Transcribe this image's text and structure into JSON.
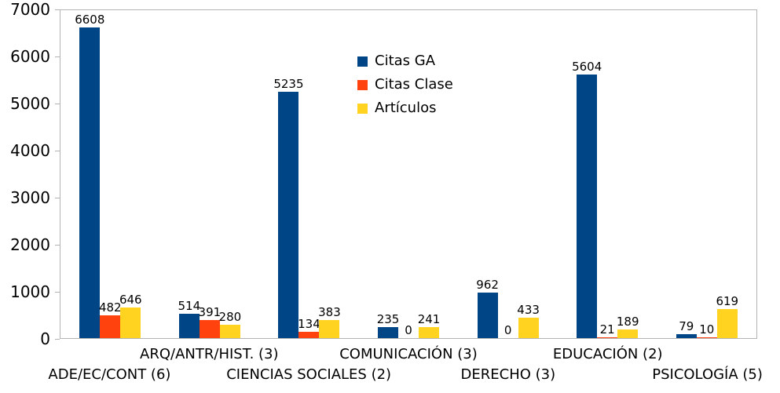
{
  "chart_data": {
    "type": "bar",
    "title": "",
    "xlabel": "",
    "ylabel": "",
    "ylim": [
      0,
      7000
    ],
    "yticks": [
      0,
      1000,
      2000,
      3000,
      4000,
      5000,
      6000,
      7000
    ],
    "grid": false,
    "data_labels": true,
    "legend_position": "top-center-inside",
    "categories": [
      "ADE/EC/CONT (6)",
      "ARQ/ANTR/HIST. (3)",
      "CIENCIAS SOCIALES (2)",
      "COMUNICACIÓN (3)",
      "DERECHO (3)",
      "EDUCACIÓN (2)",
      "PSICOLOGÍA (5)"
    ],
    "series": [
      {
        "name": "Citas GA",
        "color": "#004586",
        "values": [
          6608,
          514,
          5235,
          235,
          962,
          5604,
          79
        ]
      },
      {
        "name": "Citas Clase",
        "color": "#ff420e",
        "values": [
          482,
          391,
          134,
          0,
          0,
          21,
          10
        ]
      },
      {
        "name": "Artículos",
        "color": "#ffd320",
        "values": [
          646,
          280,
          383,
          241,
          433,
          189,
          619
        ]
      }
    ],
    "colors": {
      "plot_border": "#b3b3b3",
      "background": "#ffffff",
      "text": "#000000"
    }
  }
}
